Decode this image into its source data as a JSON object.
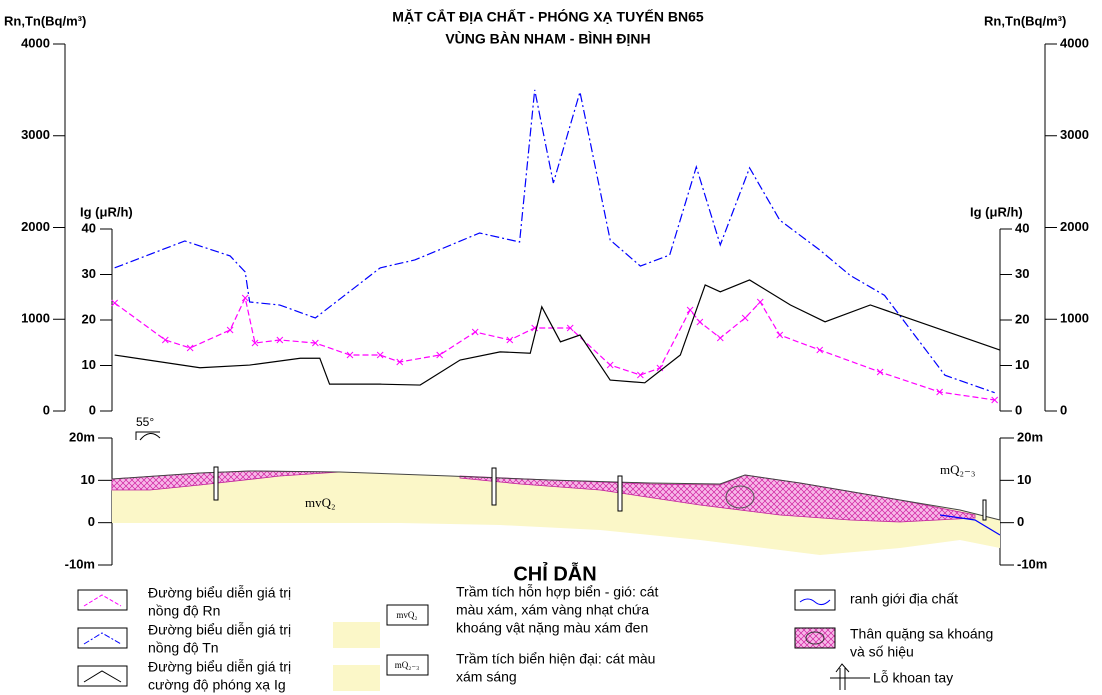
{
  "chart_data": [
    {
      "type": "line",
      "title": "MẶT CẮT ĐỊA CHẤT - PHÓNG XẠ TUYẾN BN65",
      "subtitle": "VÙNG BÀN NHAM - BÌNH ĐỊNH",
      "ylabel": "Rn,Tn(Bq/m³)",
      "y2label": "Ig (μR/h)",
      "xlim": [
        0,
        100
      ],
      "ylim": [
        0,
        4000
      ],
      "yticks": [
        0,
        1000,
        2000,
        3000,
        4000
      ],
      "y2lim": [
        0,
        40
      ],
      "y2ticks": [
        0,
        10,
        20,
        30,
        40
      ],
      "series": [
        {
          "color": "#ff00ff",
          "style": "dashed",
          "marker": "x",
          "axis": "y",
          "x": [
            0.3,
            6.0,
            8.8,
            13.3,
            15.0,
            16.1,
            18.9,
            22.9,
            26.8,
            30.2,
            32.4,
            36.9,
            40.9,
            44.8,
            47.6,
            51.6,
            56.1,
            59.5,
            61.7,
            65.1,
            66.2,
            68.5,
            71.3,
            73.0,
            75.2,
            79.7,
            86.5,
            93.2,
            99.4
          ],
          "values": [
            1177,
            774,
            687,
            883,
            1232,
            741,
            774,
            741,
            610,
            610,
            534,
            610,
            861,
            774,
            905,
            905,
            501,
            392,
            469,
            1101,
            970,
            796,
            1014,
            1188,
            828,
            665,
            425,
            207,
            120
          ]
        },
        {
          "color": "#0000ff",
          "style": "dashdot",
          "axis": "y",
          "x": [
            0.3,
            8.2,
            13.3,
            15.0,
            15.5,
            18.9,
            22.9,
            30.2,
            34.1,
            41.4,
            45.9,
            47.6,
            49.7,
            52.7,
            56.1,
            59.5,
            62.8,
            65.8,
            68.5,
            71.8,
            75.2,
            79.7,
            83.1,
            87.0,
            93.8,
            99.4
          ],
          "values": [
            1560,
            1853,
            1690,
            1515,
            1188,
            1155,
            1014,
            1560,
            1646,
            1940,
            1842,
            3500,
            2485,
            3477,
            1864,
            1580,
            1700,
            2660,
            1810,
            2650,
            2080,
            1755,
            1480,
            1260,
            390,
            200
          ]
        },
        {
          "color": "#000000",
          "style": "solid",
          "axis": "y2",
          "x": [
            0.3,
            9.9,
            15.5,
            21.2,
            23.4,
            24.5,
            30.2,
            34.7,
            39.2,
            43.7,
            47.1,
            48.4,
            50.5,
            52.7,
            56.1,
            60.0,
            64.0,
            66.8,
            68.5,
            71.8,
            76.4,
            80.3,
            85.4,
            100
          ],
          "values": [
            12.3,
            9.5,
            10.1,
            11.6,
            11.6,
            5.9,
            5.9,
            5.7,
            11.2,
            13.0,
            12.7,
            22.9,
            15.2,
            16.7,
            6.8,
            6.2,
            12.3,
            27.7,
            26.2,
            28.8,
            23.3,
            19.6,
            23.3,
            13.4
          ]
        }
      ]
    },
    {
      "type": "section",
      "ylim": [
        -10,
        20
      ],
      "yticks": [
        {
          "value": 20,
          "label": "20m"
        },
        10,
        0,
        {
          "value": -10,
          "label": "-10m"
        }
      ],
      "annotations": [
        "mvQ₂",
        "mQ₂₋₃",
        "55°"
      ]
    }
  ],
  "legend": {
    "title": "CHỈ DẪN",
    "items": [
      {
        "lines": [
          "Đường biểu diễn giá trị",
          "nồng độ Rn"
        ]
      },
      {
        "lines": [
          "Đường biểu diễn giá trị",
          "nồng độ Tn"
        ]
      },
      {
        "lines": [
          "Đường biểu diễn giá trị",
          "cường độ phóng xạ Ig"
        ]
      },
      {
        "lines": [
          "Trầm tích hỗn hợp biển - gió: cát",
          "màu xám, xám vàng nhạt chứa",
          "khoáng vật nặng màu xám đen"
        ]
      },
      {
        "lines": [
          "Trầm tích biển hiện đại: cát màu",
          "xám sáng"
        ]
      },
      {
        "lines": [
          "ranh giới địa chất"
        ]
      },
      {
        "lines": [
          "Thân quặng sa khoáng",
          "và số hiệu"
        ]
      },
      {
        "lines": [
          "Lỗ khoan tay"
        ]
      }
    ],
    "symbols": [
      "mvQ₂",
      "mQ₂₋₃"
    ]
  }
}
